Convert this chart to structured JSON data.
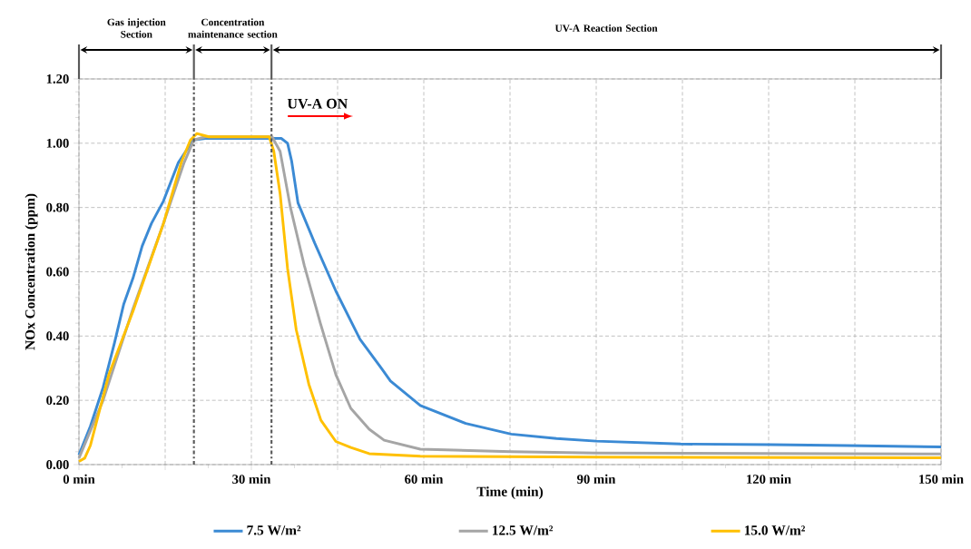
{
  "chart_data": {
    "type": "line",
    "xlabel": "Time (min)",
    "ylabel": "NOx Concentration (ppm)",
    "xlim": [
      0,
      150
    ],
    "ylim": [
      0,
      1.2
    ],
    "xticks": [
      {
        "value": 0,
        "label": "0 min"
      },
      {
        "value": 15,
        "label": null
      },
      {
        "value": 30,
        "label": "30 min"
      },
      {
        "value": 45,
        "label": null
      },
      {
        "value": 60,
        "label": "60 min"
      },
      {
        "value": 75,
        "label": null
      },
      {
        "value": 90,
        "label": "90 min"
      },
      {
        "value": 105,
        "label": null
      },
      {
        "value": 120,
        "label": "120 min"
      },
      {
        "value": 135,
        "label": null
      },
      {
        "value": 150,
        "label": "150 min"
      }
    ],
    "yticks": [
      {
        "value": 0,
        "label": "0.00"
      },
      {
        "value": 0.2,
        "label": "0.20"
      },
      {
        "value": 0.4,
        "label": "0.40"
      },
      {
        "value": 0.6,
        "label": "0.60"
      },
      {
        "value": 0.8,
        "label": "0.80"
      },
      {
        "value": 1.0,
        "label": "1.00"
      },
      {
        "value": 1.2,
        "label": "1.20"
      }
    ],
    "grid": true,
    "legend": "bottom",
    "marker": "none",
    "line_style": "solid",
    "ref_lines": [
      {
        "axis": "x",
        "value": 20,
        "color": "#595959",
        "line_style": "dashdot"
      },
      {
        "axis": "x",
        "value": 33.5,
        "color": "#595959",
        "line_style": "dashdot"
      }
    ],
    "annotations": [
      "Gas injection Section",
      "Concentration maintenance section",
      "UV-A Reaction Section",
      "UV-A ON"
    ],
    "series": [
      {
        "name": "7.5 W/m²",
        "color": "#3b8ad4",
        "x": [
          0,
          2,
          4.2,
          6.2,
          7.8,
          9.4,
          11,
          12.6,
          14.7,
          17.3,
          19.9,
          22,
          30,
          35.2,
          36.3,
          37,
          38.1,
          41,
          44.7,
          48.9,
          52.6,
          54.2,
          59.4,
          67.3,
          75.2,
          83.1,
          90,
          104.7,
          120.5,
          133.6,
          150
        ],
        "values": [
          0.03,
          0.12,
          0.24,
          0.38,
          0.5,
          0.58,
          0.68,
          0.75,
          0.82,
          0.94,
          1.01,
          1.015,
          1.015,
          1.015,
          1.0,
          0.945,
          0.815,
          0.69,
          0.54,
          0.39,
          0.3,
          0.26,
          0.184,
          0.128,
          0.095,
          0.081,
          0.073,
          0.064,
          0.062,
          0.059,
          0.055
        ]
      },
      {
        "name": "12.5 W/m²",
        "color": "#a5a5a5",
        "x": [
          0,
          4.2,
          9.4,
          14.7,
          18.3,
          20,
          22,
          33.6,
          35,
          36.8,
          39.2,
          42,
          44.7,
          47.3,
          50.5,
          53.1,
          59.4,
          75.2,
          90,
          150
        ],
        "values": [
          0.02,
          0.2,
          0.485,
          0.75,
          0.94,
          1.01,
          1.02,
          1.02,
          0.975,
          0.8,
          0.62,
          0.44,
          0.28,
          0.175,
          0.11,
          0.076,
          0.048,
          0.04,
          0.036,
          0.033
        ]
      },
      {
        "name": "15.0 W/m²",
        "color": "#ffc000",
        "x": [
          0,
          1,
          2,
          5.2,
          9.4,
          14.7,
          17.8,
          19.4,
          20.5,
          22.6,
          33.1,
          33.9,
          35,
          36.3,
          37.8,
          40,
          42.1,
          44.7,
          47.3,
          50.5,
          59.4,
          90,
          150
        ],
        "values": [
          0.01,
          0.02,
          0.06,
          0.28,
          0.477,
          0.75,
          0.94,
          1.01,
          1.03,
          1.02,
          1.02,
          0.975,
          0.843,
          0.61,
          0.42,
          0.25,
          0.138,
          0.072,
          0.053,
          0.034,
          0.026,
          0.023,
          0.021
        ]
      }
    ]
  }
}
